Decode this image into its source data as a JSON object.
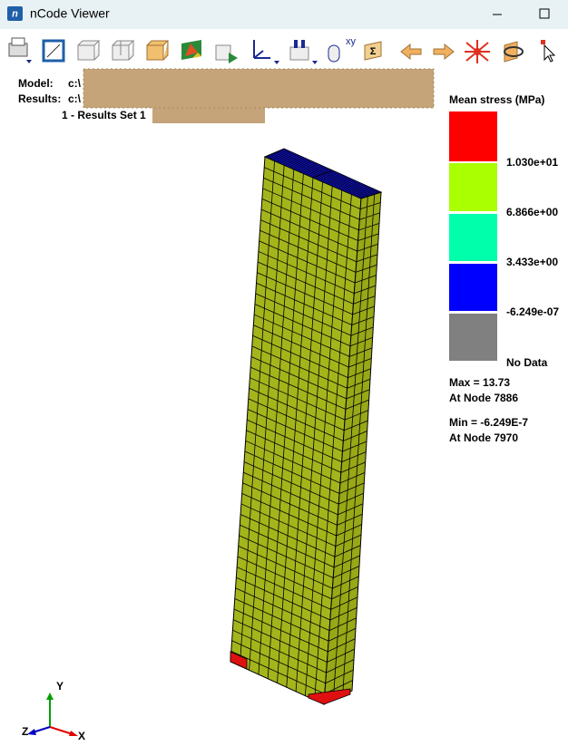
{
  "window": {
    "title": "nCode Viewer"
  },
  "info": {
    "model_label": "Model:",
    "model_path": "c:\\",
    "results_label": "Results:",
    "results_path": "c:\\",
    "results_set": "1 - Results Set 1"
  },
  "legend": {
    "title": "Mean stress (MPa)",
    "labels": [
      "1.030e+01",
      "6.866e+00",
      "3.433e+00",
      "-6.249e-07",
      "No Data"
    ],
    "max": "Max = 13.73",
    "max_node": "At Node 7886",
    "min": "Min = -6.249E-7",
    "min_node": "At Node 7970"
  },
  "triad": {
    "y": "Y",
    "z": "Z",
    "x": "X"
  }
}
